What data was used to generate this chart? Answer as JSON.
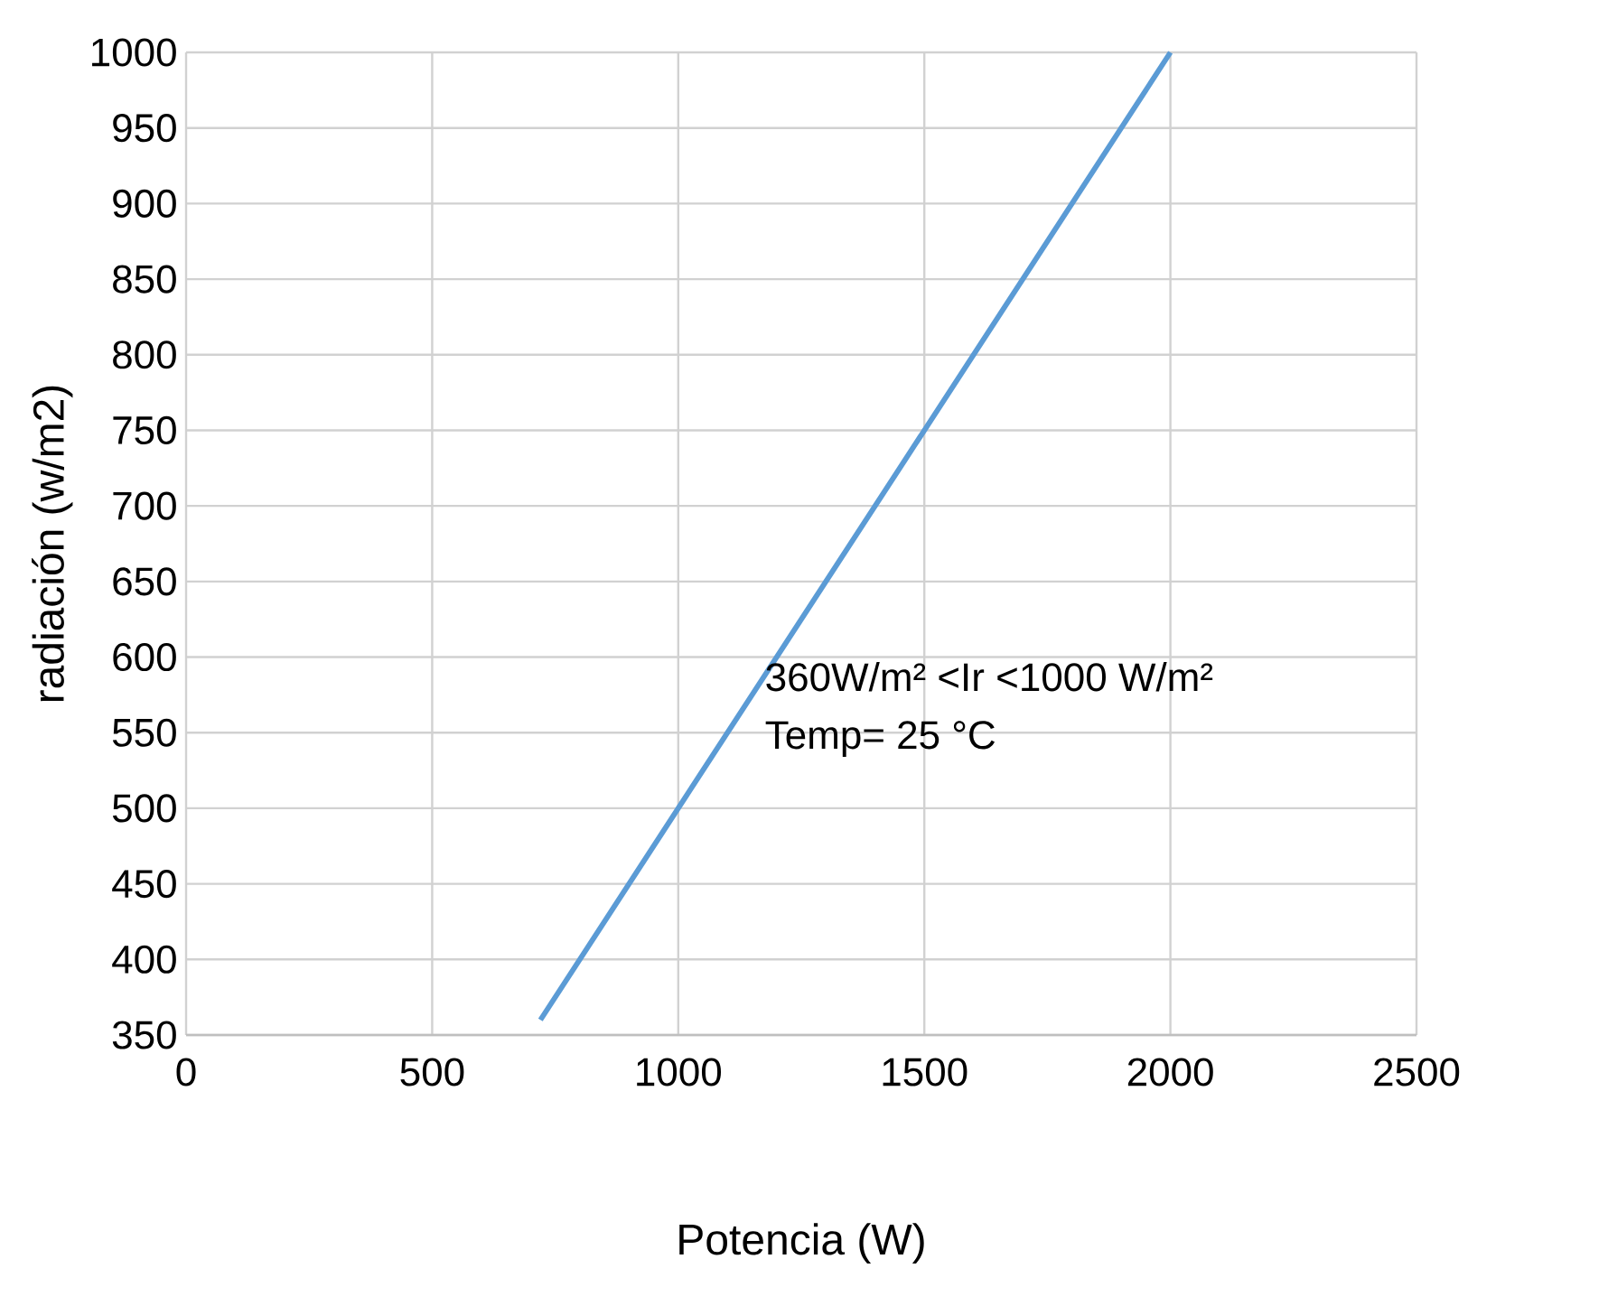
{
  "chart_data": {
    "type": "line",
    "xlabel": "Potencia (W)",
    "ylabel": "radiación (w/m2)",
    "x": [
      720,
      1000,
      1500,
      2000
    ],
    "series": [
      {
        "color": "#5b9bd5",
        "values": [
          360,
          500,
          750,
          1000
        ]
      }
    ],
    "xlim": [
      0,
      2500
    ],
    "xticks": [
      0,
      500,
      1000,
      1500,
      2000,
      2500
    ],
    "ylim": [
      350,
      1000
    ],
    "yticks": [
      350,
      400,
      450,
      500,
      550,
      600,
      650,
      700,
      750,
      800,
      850,
      900,
      950,
      1000
    ],
    "grid": true,
    "marker": "none",
    "line_style": "solid",
    "annotations": [
      "360W/m² <Ir <1000 W/m²",
      "Temp= 25 °C"
    ]
  }
}
